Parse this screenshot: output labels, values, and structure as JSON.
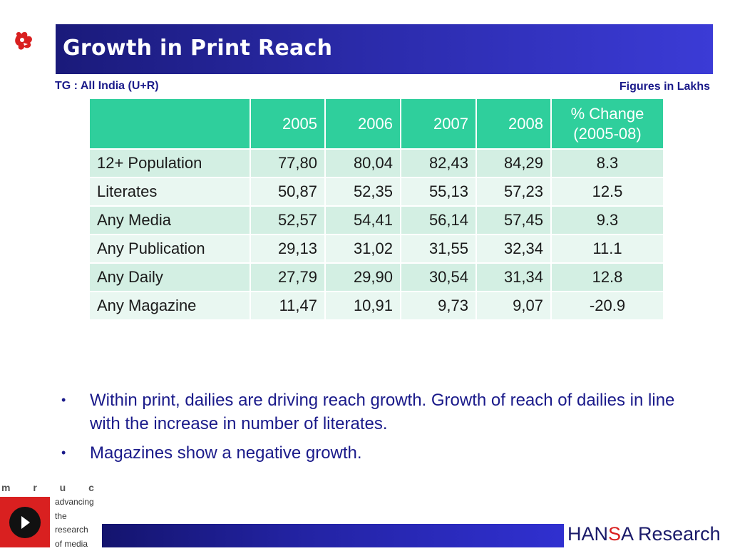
{
  "slide": {
    "title": "Growth in Print Reach",
    "tg_label": "TG : All India (U+R)",
    "figures_note": "Figures in Lakhs"
  },
  "table": {
    "header": [
      "",
      "2005",
      "2006",
      "2007",
      "2008",
      "% Change (2005-08)"
    ],
    "rows": [
      [
        "12+ Population",
        "77,80",
        "80,04",
        "82,43",
        "84,29",
        "8.3"
      ],
      [
        "Literates",
        "50,87",
        "52,35",
        "55,13",
        "57,23",
        "12.5"
      ],
      [
        "Any Media",
        "52,57",
        "54,41",
        "56,14",
        "57,45",
        "9.3"
      ],
      [
        "Any Publication",
        "29,13",
        "31,02",
        "31,55",
        "32,34",
        "11.1"
      ],
      [
        "Any Daily",
        "27,79",
        "29,90",
        "30,54",
        "31,34",
        "12.8"
      ],
      [
        "Any Magazine",
        "11,47",
        "10,91",
        "9,73",
        "9,07",
        "-20.9"
      ]
    ]
  },
  "bullets": [
    "Within print, dailies are driving reach growth. Growth of reach of dailies in line with the increase in number of literates.",
    "Magazines show a negative growth."
  ],
  "footer": {
    "mruc_letters": "m r u c",
    "mruc_tagline": [
      "advancing",
      "the",
      "research",
      "of media"
    ],
    "hansa_prefix": "HAN",
    "hansa_s": "S",
    "hansa_suffix": "A Research"
  },
  "colors": {
    "title_bar": "#2a2aa8",
    "header_row": "#2fcf9c",
    "row_odd": "#d3efe3",
    "row_even": "#e9f7f1",
    "accent_red": "#d92020",
    "text_navy": "#1a1a8a"
  },
  "icons": {
    "top_logo": "red-bird-logo-icon",
    "mruc_logo": "play-button-icon"
  }
}
